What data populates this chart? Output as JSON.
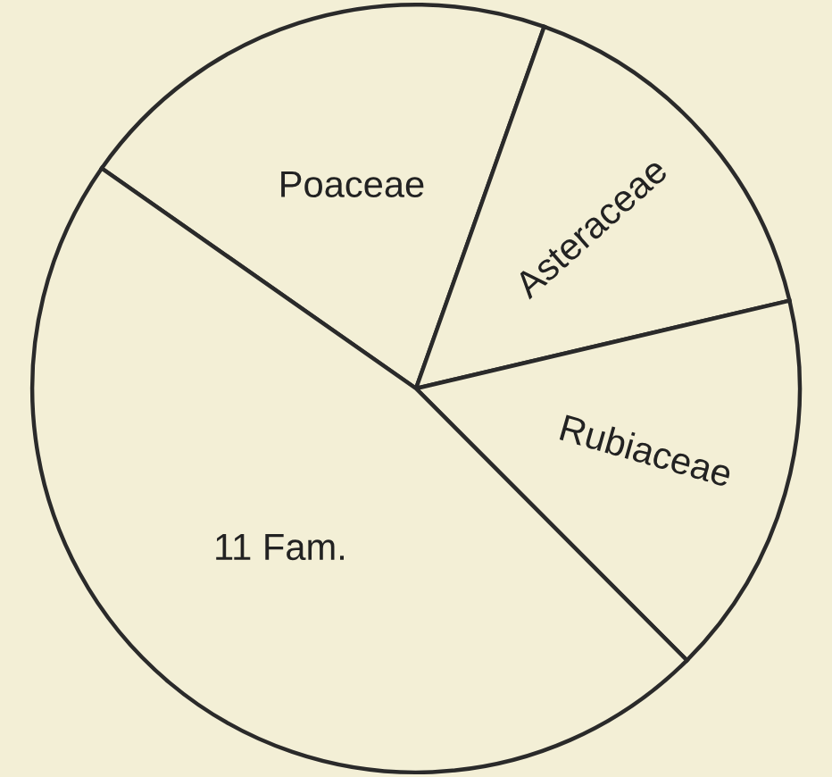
{
  "chart_data": {
    "type": "pie",
    "categories": [
      "Poaceae",
      "Asteraceae",
      "Rubiaceae",
      "11 Fam."
    ],
    "values": [
      20.7,
      15.9,
      16.2,
      47.2
    ],
    "colors": [
      "#f3efd6",
      "#f3efd6",
      "#f3efd6",
      "#f3efd6"
    ]
  }
}
